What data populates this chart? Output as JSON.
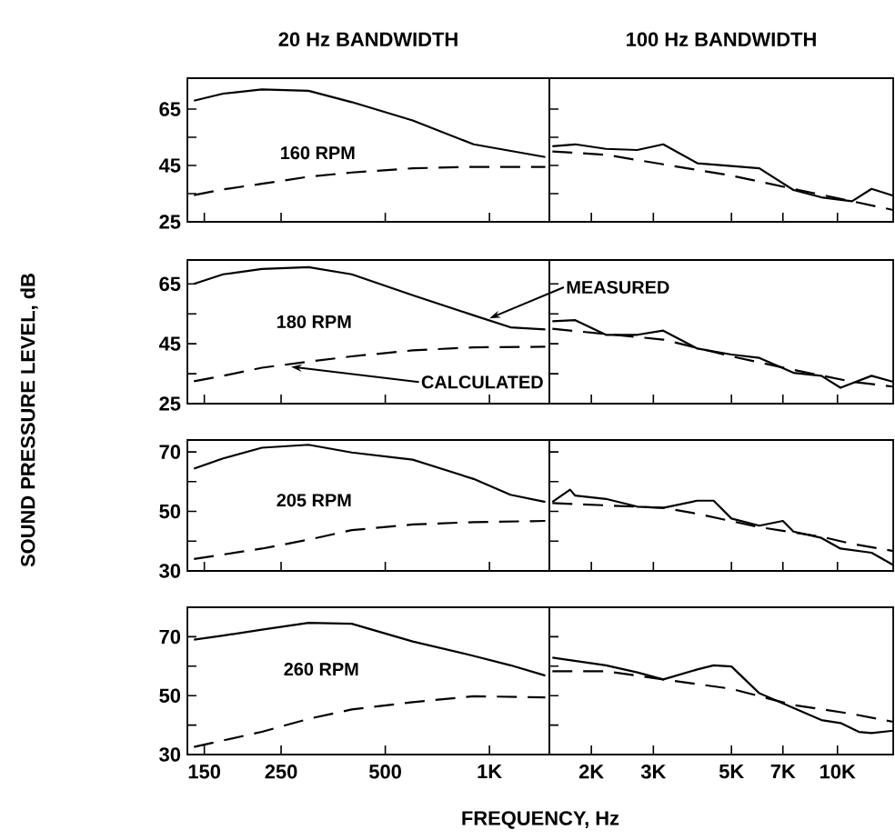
{
  "chart_data": [
    {
      "type": "line",
      "title": "20 Hz BANDWIDTH",
      "ylabel": "SOUND PRESSURE LEVEL, dB",
      "log": "x",
      "xlim": [
        134,
        1490
      ],
      "ylim": [
        25,
        76
      ],
      "xticks": [
        150,
        250,
        500,
        1000
      ],
      "yticks": [
        25,
        {
          "value": 35,
          "label": null
        },
        45,
        {
          "value": 55,
          "label": null
        },
        65
      ],
      "tick_labels": "y",
      "annotations": [
        "160 RPM"
      ],
      "series": [
        {
          "color": "#000000",
          "line_style": "solid",
          "x": [
            140,
            170,
            220,
            300,
            400,
            600,
            900,
            1450
          ],
          "values": [
            68,
            70.5,
            72,
            71.5,
            67.5,
            61,
            52.5,
            48
          ]
        },
        {
          "color": "#000000",
          "line_style": "dashed",
          "x": [
            140,
            170,
            220,
            300,
            400,
            600,
            900,
            1450
          ],
          "values": [
            34.5,
            36.5,
            38.5,
            41,
            42.5,
            44,
            44.5,
            44.5
          ]
        }
      ]
    },
    {
      "type": "line",
      "title": "100 Hz BANDWIDTH",
      "log": "x",
      "xlim": [
        1520,
        14400
      ],
      "ylim": [
        25,
        76
      ],
      "xticks": [
        2000,
        3000,
        5000,
        7000,
        10000
      ],
      "yticks": [
        25,
        35,
        45,
        55,
        65
      ],
      "tick_labels": false,
      "series": [
        {
          "color": "#000000",
          "line_style": "solid",
          "x": [
            1550,
            1800,
            2200,
            2700,
            3200,
            4000,
            5000,
            6000,
            7500,
            9000,
            11000,
            12500,
            14400
          ],
          "values": [
            51.8,
            52.5,
            50.9,
            50.5,
            52.5,
            45.8,
            44.8,
            44,
            36.3,
            33.7,
            32.3,
            36.7,
            34.3
          ]
        },
        {
          "color": "#000000",
          "line_style": "dashed",
          "x": [
            1550,
            2200,
            3200,
            5000,
            7500,
            11000,
            14400
          ],
          "values": [
            50,
            48.8,
            45.4,
            41.4,
            36.7,
            32.3,
            29.2
          ]
        }
      ]
    },
    {
      "type": "line",
      "log": "x",
      "xlim": [
        134,
        1490
      ],
      "ylim": [
        25,
        73
      ],
      "xticks": [
        150,
        250,
        500,
        1000
      ],
      "yticks": [
        25,
        {
          "value": 35,
          "label": null
        },
        45,
        {
          "value": 55,
          "label": null
        },
        65
      ],
      "tick_labels": "y",
      "annotations": [
        "180 RPM",
        {
          "text": "MEASURED",
          "x": 1000,
          "y": 53.5
        },
        {
          "text": "CALCULATED",
          "x": 267,
          "y": 37.3
        }
      ],
      "series": [
        {
          "color": "#000000",
          "line_style": "solid",
          "x": [
            140,
            170,
            220,
            300,
            400,
            600,
            900,
            1150,
            1450
          ],
          "values": [
            65,
            68.2,
            70,
            70.6,
            68.2,
            61.2,
            54.5,
            50.5,
            49.8
          ]
        },
        {
          "color": "#000000",
          "line_style": "dashed",
          "x": [
            140,
            170,
            220,
            300,
            400,
            600,
            900,
            1450
          ],
          "values": [
            32.5,
            34.3,
            37,
            39,
            40.8,
            42.8,
            43.8,
            44
          ]
        }
      ]
    },
    {
      "type": "line",
      "log": "x",
      "xlim": [
        1520,
        14400
      ],
      "ylim": [
        25,
        73
      ],
      "xticks": [
        2000,
        3000,
        5000,
        7000,
        10000
      ],
      "yticks": [
        25,
        35,
        45,
        55,
        65
      ],
      "tick_labels": false,
      "series": [
        {
          "color": "#000000",
          "line_style": "solid",
          "x": [
            1550,
            1800,
            2200,
            2700,
            3200,
            4000,
            5000,
            6000,
            7500,
            9000,
            10200,
            12500,
            14400
          ],
          "values": [
            52.5,
            52.9,
            48,
            48,
            49.4,
            43.4,
            41.4,
            40.3,
            35.3,
            34.3,
            30.3,
            34.3,
            32.3
          ]
        },
        {
          "color": "#000000",
          "line_style": "dashed",
          "x": [
            1550,
            3200,
            5000,
            7500,
            11000,
            14400
          ],
          "values": [
            50,
            46.4,
            40.8,
            36.3,
            32.3,
            30.7
          ]
        }
      ]
    },
    {
      "type": "line",
      "log": "x",
      "xlim": [
        134,
        1490
      ],
      "ylim": [
        30,
        74
      ],
      "xticks": [
        150,
        250,
        500,
        1000
      ],
      "yticks": [
        30,
        {
          "value": 40,
          "label": null
        },
        50,
        {
          "value": 60,
          "label": null
        },
        70
      ],
      "tick_labels": "y",
      "annotations": [
        "205 RPM"
      ],
      "series": [
        {
          "color": "#000000",
          "line_style": "solid",
          "x": [
            140,
            170,
            220,
            300,
            400,
            600,
            900,
            1150,
            1450
          ],
          "values": [
            64.4,
            67.8,
            71.4,
            72.4,
            69.8,
            67.4,
            60.9,
            55.6,
            53.2
          ]
        },
        {
          "color": "#000000",
          "line_style": "dashed",
          "x": [
            140,
            220,
            300,
            400,
            600,
            900,
            1450
          ],
          "values": [
            34,
            37.5,
            40.5,
            43.7,
            45.6,
            46.4,
            46.8
          ]
        }
      ]
    },
    {
      "type": "line",
      "log": "x",
      "xlim": [
        1520,
        14400
      ],
      "ylim": [
        30,
        74
      ],
      "xticks": [
        2000,
        3000,
        5000,
        7000,
        10000
      ],
      "yticks": [
        30,
        40,
        50,
        60,
        70
      ],
      "tick_labels": false,
      "series": [
        {
          "color": "#000000",
          "line_style": "solid",
          "x": [
            1550,
            1740,
            1800,
            2200,
            2700,
            3200,
            4000,
            4450,
            5000,
            6000,
            7000,
            7500,
            9000,
            10200,
            12500,
            14400
          ],
          "values": [
            53.2,
            57.3,
            55.3,
            54.2,
            51.6,
            51.2,
            53.6,
            53.6,
            47.6,
            45.2,
            46.8,
            43.2,
            41.1,
            37.5,
            36.1,
            32
          ]
        },
        {
          "color": "#000000",
          "line_style": "dashed",
          "x": [
            1550,
            3200,
            4000,
            6000,
            9000,
            11000,
            14400
          ],
          "values": [
            52.8,
            51.2,
            49.2,
            44.7,
            41.5,
            39.1,
            36.7
          ]
        }
      ]
    },
    {
      "type": "line",
      "xlabel": "FREQUENCY, Hz",
      "log": "x",
      "xlim": [
        134,
        1490
      ],
      "ylim": [
        30,
        80
      ],
      "xticks": [
        150,
        250,
        500,
        {
          "value": 1000,
          "label": "1K"
        }
      ],
      "yticks": [
        30,
        {
          "value": 40,
          "label": null
        },
        50,
        {
          "value": 60,
          "label": null
        },
        70
      ],
      "annotations": [
        "260 RPM"
      ],
      "series": [
        {
          "color": "#000000",
          "line_style": "solid",
          "x": [
            140,
            170,
            220,
            300,
            400,
            600,
            900,
            1150,
            1450
          ],
          "values": [
            69,
            70.4,
            72.4,
            74.7,
            74.4,
            68.4,
            63.5,
            60.3,
            56.8
          ]
        },
        {
          "color": "#000000",
          "line_style": "dashed",
          "x": [
            140,
            220,
            300,
            400,
            600,
            900,
            1450
          ],
          "values": [
            32.6,
            37.7,
            42.1,
            45.3,
            47.8,
            49.8,
            49.4
          ]
        }
      ]
    },
    {
      "type": "line",
      "log": "x",
      "xlim": [
        1520,
        14400
      ],
      "ylim": [
        30,
        80
      ],
      "xticks": [
        {
          "value": 2000,
          "label": "2K"
        },
        {
          "value": 3000,
          "label": "3K"
        },
        {
          "value": 5000,
          "label": "5K"
        },
        {
          "value": 7000,
          "label": "7K"
        },
        {
          "value": 10000,
          "label": "10K"
        }
      ],
      "yticks": [
        30,
        40,
        50,
        60,
        70
      ],
      "tick_labels": "x",
      "series": [
        {
          "color": "#000000",
          "line_style": "solid",
          "x": [
            1550,
            2200,
            2700,
            3200,
            4000,
            4450,
            5000,
            6000,
            7500,
            9000,
            10200,
            11500,
            12500,
            14400
          ],
          "values": [
            62.9,
            60.3,
            57.9,
            55.5,
            58.9,
            60.3,
            59.9,
            50.8,
            45.8,
            41.7,
            40.7,
            37.7,
            37.3,
            38.1
          ]
        },
        {
          "color": "#000000",
          "line_style": "dashed",
          "x": [
            1550,
            2200,
            3200,
            5000,
            7500,
            11000,
            14400
          ],
          "values": [
            58.3,
            58.3,
            55.5,
            52.3,
            46.8,
            43.8,
            41.1
          ]
        }
      ]
    }
  ]
}
